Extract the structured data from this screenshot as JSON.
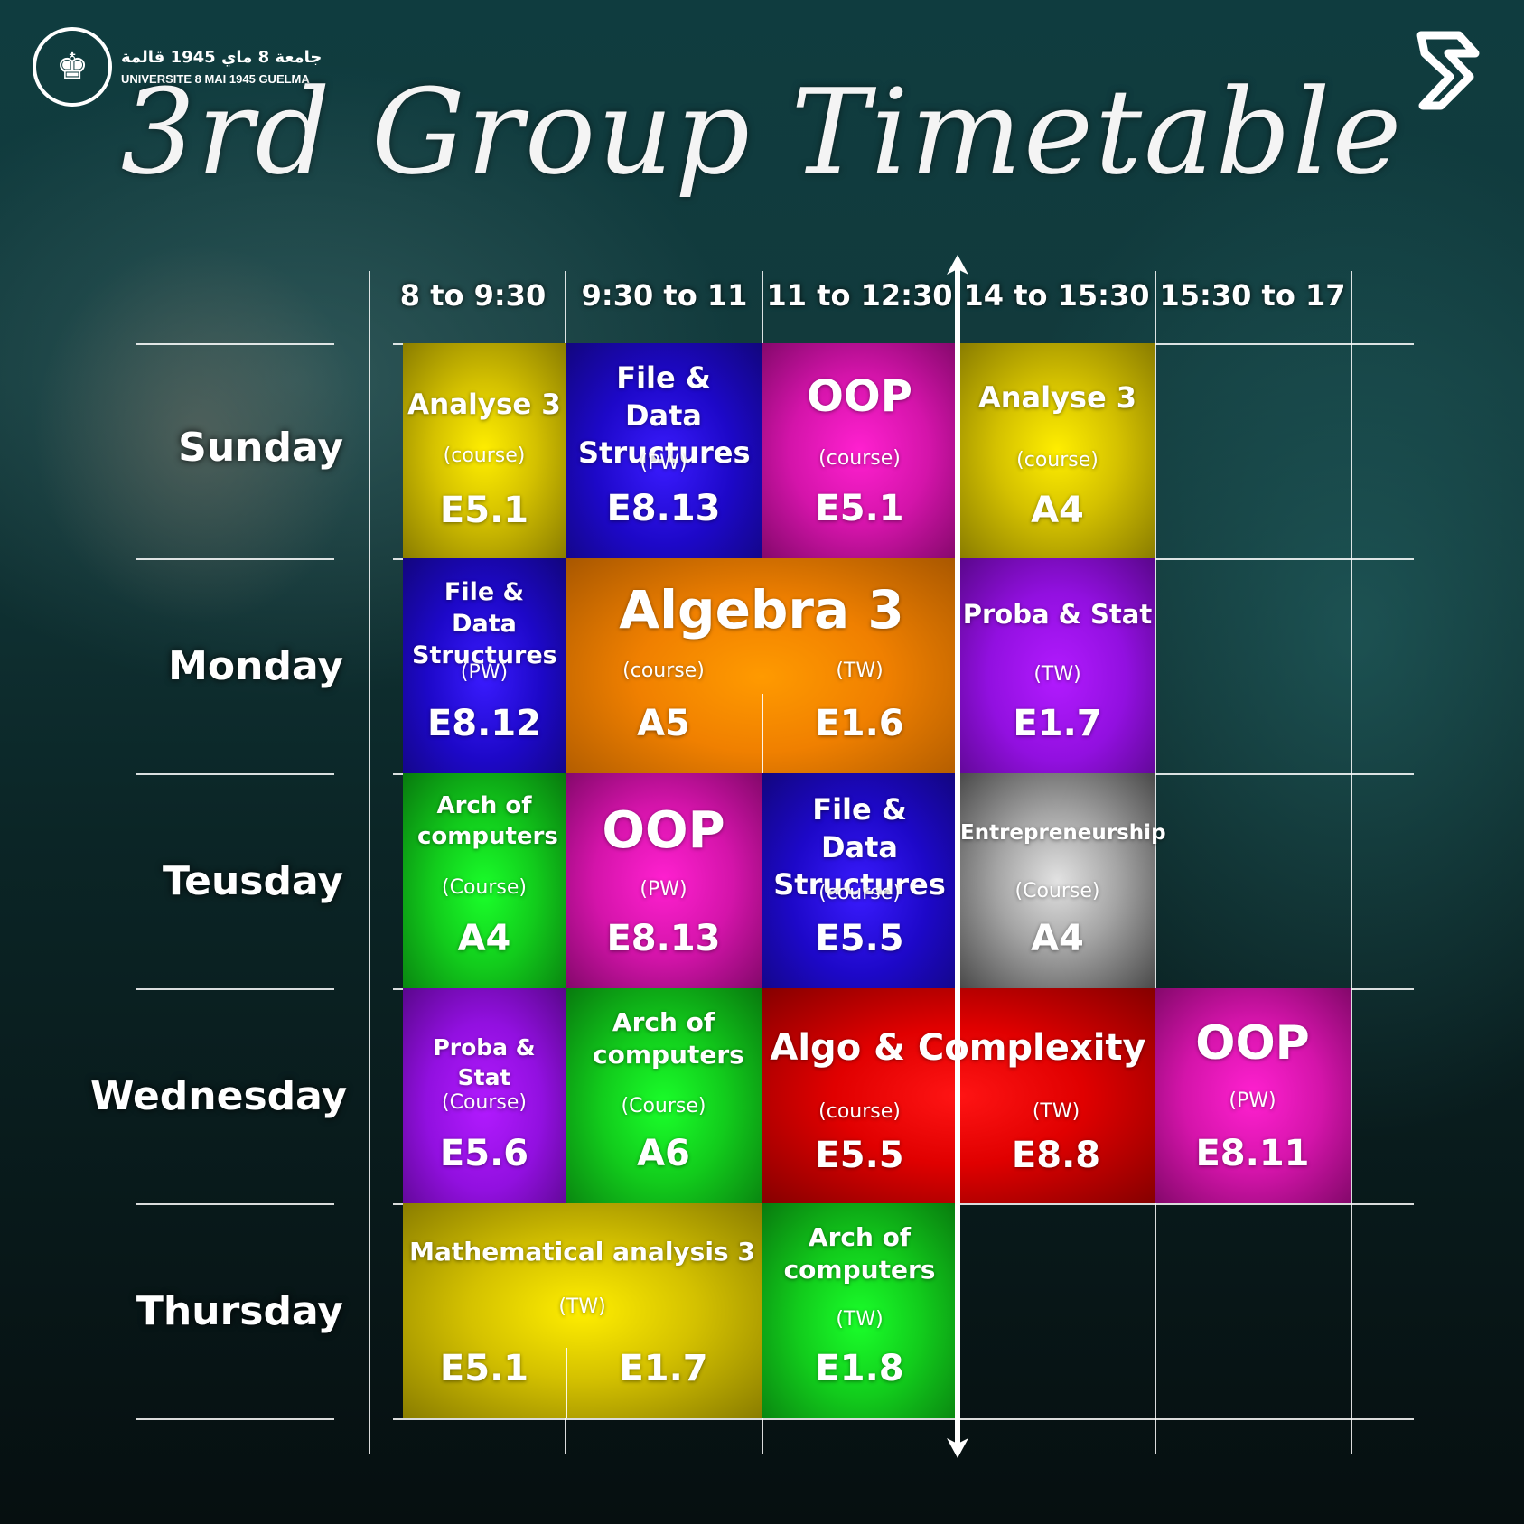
{
  "header": {
    "university_ar": "جامعة 8 ماي 1945 قالمة",
    "university_fr": "UNIVERSITE 8 MAI 1945 GUELMA",
    "title": "3rd Group Timetable"
  },
  "icons": {
    "seal": "university-seal-icon",
    "brand": "brand-logo-icon"
  },
  "time_slots": [
    "8 to 9:30",
    "9:30 to 11",
    "11 to 12:30",
    "14 to 15:30",
    "15:30 to 17"
  ],
  "days": [
    "Sunday",
    "Monday",
    "Teusday",
    "Wednesday",
    "Thursday"
  ],
  "sessions": {
    "sun_analyse": {
      "subject": "Analyse 3",
      "type": "(course)",
      "room": "E5.1",
      "color": "#e6d200"
    },
    "sun_fds": {
      "subject": "File & Data Structures",
      "type": "(PW)",
      "room": "E8.13",
      "color": "#2a10e8"
    },
    "sun_oop": {
      "subject": "OOP",
      "type": "(course)",
      "room": "E5.1",
      "color": "#e418b8"
    },
    "sun_analyse2": {
      "subject": "Analyse 3",
      "type": "(course)",
      "room": "A4",
      "color": "#e6d200"
    },
    "mon_fds": {
      "subject": "File & Data Structures",
      "type": "(PW)",
      "room": "E8.12",
      "color": "#2a10e8"
    },
    "mon_algebra": {
      "subject": "Algebra 3",
      "type_a": "(course)",
      "room_a": "A5",
      "type_b": "(TW)",
      "room_b": "E1.6",
      "color": "#f08a00"
    },
    "mon_proba": {
      "subject": "Proba & Stat",
      "type": "(TW)",
      "room": "E1.7",
      "color": "#a014f0"
    },
    "tue_arch": {
      "subject": "Arch of computers",
      "type": "(Course)",
      "room": "A4",
      "color": "#14d81e"
    },
    "tue_oop": {
      "subject": "OOP",
      "type": "(PW)",
      "room": "E8.13",
      "color": "#e418b8"
    },
    "tue_fds": {
      "subject": "File & Data Structures",
      "type": "(course)",
      "room": "E5.5",
      "color": "#2a10e8"
    },
    "tue_entre": {
      "subject": "Entrepreneurship",
      "type": "(Course)",
      "room": "A4",
      "color": "#b0b0b0"
    },
    "wed_proba": {
      "subject": "Proba & Stat",
      "type": "(Course)",
      "room": "E5.6",
      "color": "#a014f0"
    },
    "wed_arch": {
      "subject": "Arch of computers",
      "type": "(Course)",
      "room": "A6",
      "color": "#14d81e"
    },
    "wed_algo": {
      "subject": "Algo & Complexity",
      "type_a": "(course)",
      "room_a": "E5.5",
      "type_b": "(TW)",
      "room_b": "E8.8",
      "color": "#ee0a0a"
    },
    "wed_oop": {
      "subject": "OOP",
      "type": "(PW)",
      "room": "E8.11",
      "color": "#e418b8"
    },
    "thu_math": {
      "subject": "Mathematical analysis 3",
      "type": "(TW)",
      "room_a": "E5.1",
      "room_b": "E1.7",
      "color": "#e6d200"
    },
    "thu_arch": {
      "subject": "Arch of computers",
      "type": "(TW)",
      "room": "E1.8",
      "color": "#14d81e"
    }
  }
}
